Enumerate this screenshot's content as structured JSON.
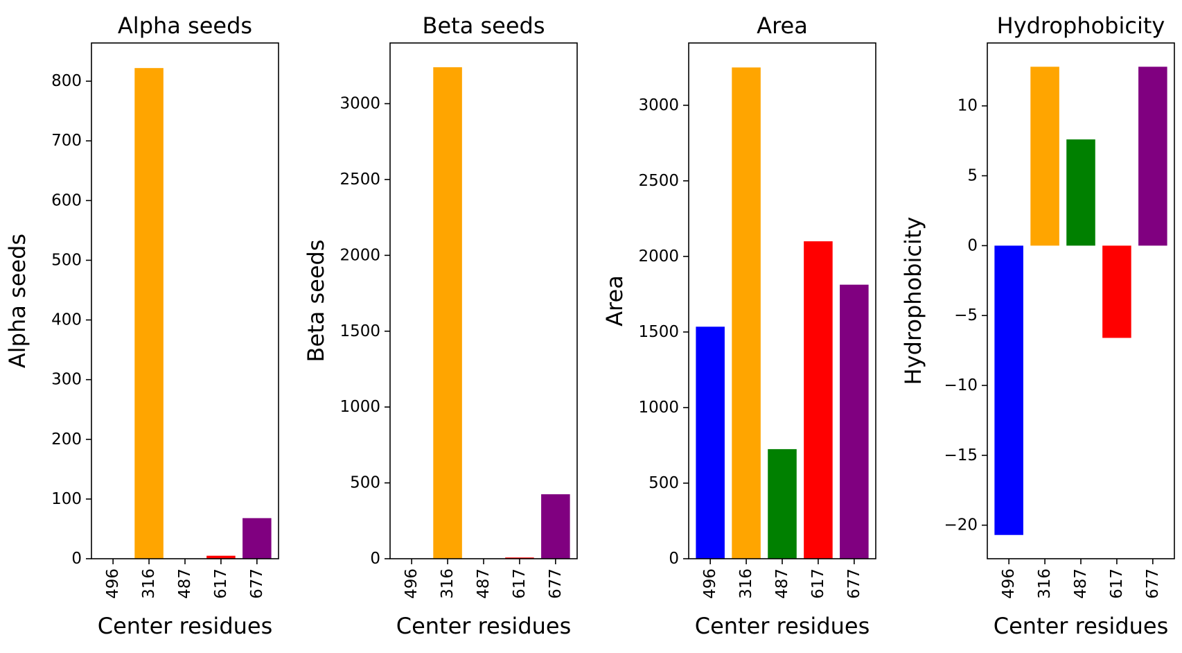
{
  "figure": {
    "panels": [
      {
        "title": "Alpha seeds",
        "xlabel": "Center residues",
        "ylabel": "Alpha seeds",
        "categories": [
          "496",
          "316",
          "487",
          "617",
          "677"
        ],
        "values": [
          0,
          822,
          0,
          5,
          68
        ],
        "ylim": [
          0,
          864
        ],
        "yticks": [
          0,
          100,
          200,
          300,
          400,
          500,
          600,
          700,
          800
        ],
        "ytick_labels": [
          "0",
          "100",
          "200",
          "300",
          "400",
          "500",
          "600",
          "700",
          "800"
        ]
      },
      {
        "title": "Beta seeds",
        "xlabel": "Center residues",
        "ylabel": "Beta seeds",
        "categories": [
          "496",
          "316",
          "487",
          "617",
          "677"
        ],
        "values": [
          0,
          3240,
          0,
          8,
          425
        ],
        "ylim": [
          0,
          3400
        ],
        "yticks": [
          0,
          500,
          1000,
          1500,
          2000,
          2500,
          3000
        ],
        "ytick_labels": [
          "0",
          "500",
          "1000",
          "1500",
          "2000",
          "2500",
          "3000"
        ]
      },
      {
        "title": "Area",
        "xlabel": "Center residues",
        "ylabel": "Area",
        "categories": [
          "496",
          "316",
          "487",
          "617",
          "677"
        ],
        "values": [
          1535,
          3250,
          725,
          2100,
          1813
        ],
        "ylim": [
          0,
          3412
        ],
        "yticks": [
          0,
          500,
          1000,
          1500,
          2000,
          2500,
          3000
        ],
        "ytick_labels": [
          "0",
          "500",
          "1000",
          "1500",
          "2000",
          "2500",
          "3000"
        ]
      },
      {
        "title": "Hydrophobicity",
        "xlabel": "Center residues",
        "ylabel": "Hydrophobicity",
        "categories": [
          "496",
          "316",
          "487",
          "617",
          "677"
        ],
        "values": [
          -20.7,
          12.8,
          7.6,
          -6.6,
          12.8
        ],
        "ylim": [
          -22.4,
          14.5
        ],
        "yticks": [
          -20,
          -15,
          -10,
          -5,
          0,
          5,
          10
        ],
        "ytick_labels": [
          "−20",
          "−15",
          "−10",
          "−5",
          "0",
          "5",
          "10"
        ]
      }
    ]
  },
  "colors": {
    "bars": [
      "#0000ff",
      "#ffa500",
      "#008000",
      "#ff0000",
      "#800080"
    ],
    "axes": "#000000",
    "background": "#ffffff"
  },
  "chart_data": [
    {
      "type": "bar",
      "title": "Alpha seeds",
      "xlabel": "Center residues",
      "ylabel": "Alpha seeds",
      "categories": [
        "496",
        "316",
        "487",
        "617",
        "677"
      ],
      "values": [
        0,
        822,
        0,
        5,
        68
      ],
      "ylim": [
        0,
        864
      ],
      "grid": false
    },
    {
      "type": "bar",
      "title": "Beta seeds",
      "xlabel": "Center residues",
      "ylabel": "Beta seeds",
      "categories": [
        "496",
        "316",
        "487",
        "617",
        "677"
      ],
      "values": [
        0,
        3240,
        0,
        8,
        425
      ],
      "ylim": [
        0,
        3400
      ],
      "grid": false
    },
    {
      "type": "bar",
      "title": "Area",
      "xlabel": "Center residues",
      "ylabel": "Area",
      "categories": [
        "496",
        "316",
        "487",
        "617",
        "677"
      ],
      "values": [
        1535,
        3250,
        725,
        2100,
        1813
      ],
      "ylim": [
        0,
        3412
      ],
      "grid": false
    },
    {
      "type": "bar",
      "title": "Hydrophobicity",
      "xlabel": "Center residues",
      "ylabel": "Hydrophobicity",
      "categories": [
        "496",
        "316",
        "487",
        "617",
        "677"
      ],
      "values": [
        -20.7,
        12.8,
        7.6,
        -6.6,
        12.8
      ],
      "ylim": [
        -22.4,
        14.5
      ],
      "grid": false
    }
  ]
}
